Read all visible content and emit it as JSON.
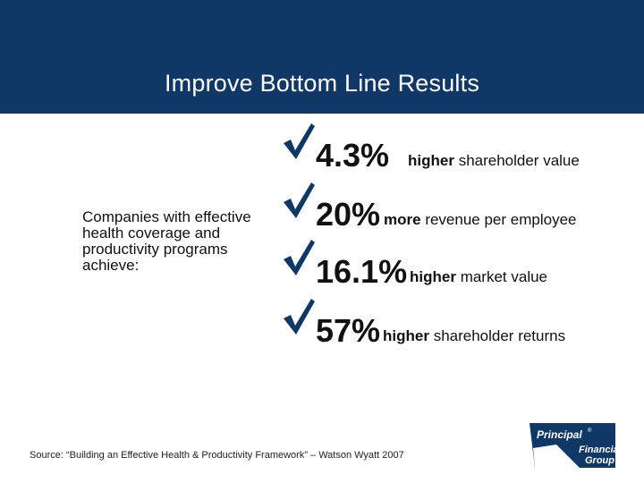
{
  "title": "Improve Bottom Line Results",
  "subject_text": "Companies with effective health coverage and productivity programs achieve:",
  "stats": [
    {
      "value": "4.3%",
      "emphasis": "higher",
      "rest": "shareholder value",
      "icon": "checkmark-icon"
    },
    {
      "value": "20%",
      "emphasis": "more",
      "rest": "revenue per employee",
      "icon": "checkmark-icon"
    },
    {
      "value": "16.1%",
      "emphasis": "higher",
      "rest": "market value",
      "icon": "checkmark-icon"
    },
    {
      "value": "57%",
      "emphasis": "higher",
      "rest": "shareholder returns",
      "icon": "checkmark-icon"
    }
  ],
  "source": "Source:  “Building an Effective Health & Productivity Framework” – Watson Wyatt 2007",
  "logo": {
    "line1": "Principal",
    "mark": "®",
    "line2": "Financial",
    "line3": "Group"
  },
  "colors": {
    "header": "#103867",
    "check": "#103867"
  }
}
